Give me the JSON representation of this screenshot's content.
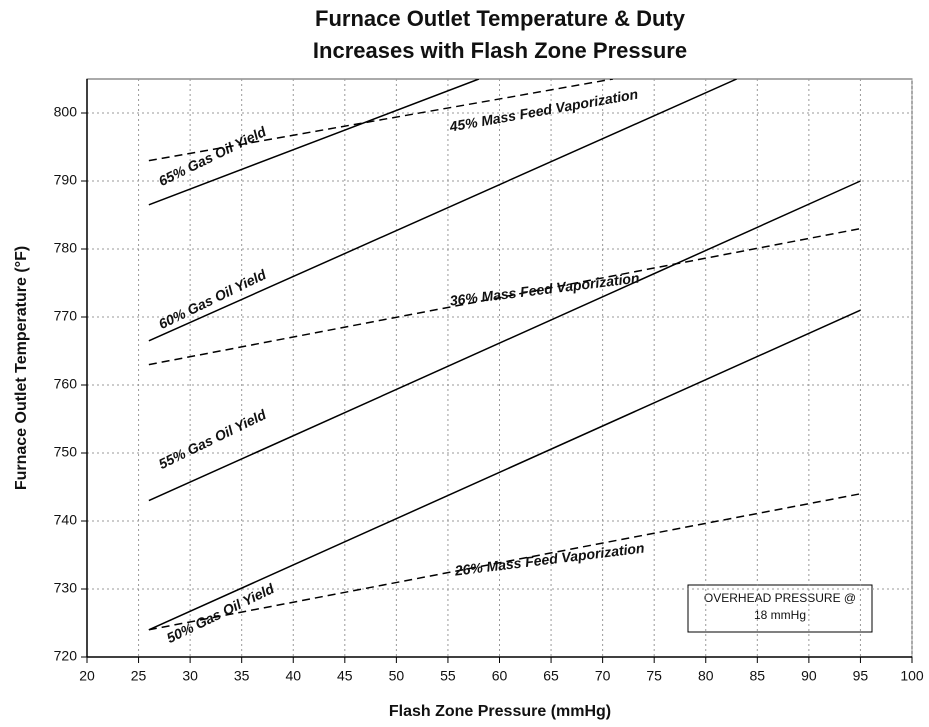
{
  "chart_data": {
    "type": "line",
    "title": [
      "Furnace Outlet Temperature & Duty",
      "Increases with Flash Zone Pressure"
    ],
    "x_label": "Flash Zone Pressure (mmHg)",
    "y_label": "Furnace Outlet Temperature (°F)",
    "xlim": [
      20,
      100
    ],
    "ylim": [
      720,
      805
    ],
    "xticks": [
      20,
      25,
      30,
      35,
      40,
      45,
      50,
      55,
      60,
      65,
      70,
      75,
      80,
      85,
      90,
      95,
      100
    ],
    "yticks": [
      720,
      730,
      740,
      750,
      760,
      770,
      780,
      790,
      800
    ],
    "grid": true,
    "series": [
      {
        "name": "65% Gas Oil Yield",
        "color": "#000000",
        "style": "solid",
        "x": [
          26,
          58
        ],
        "values": [
          786.5,
          805
        ]
      },
      {
        "name": "60% Gas Oil Yield",
        "color": "#000000",
        "style": "solid",
        "x": [
          26,
          83
        ],
        "values": [
          766.5,
          805
        ]
      },
      {
        "name": "55% Gas Oil Yield",
        "color": "#000000",
        "style": "solid",
        "x": [
          26,
          95
        ],
        "values": [
          743,
          790
        ]
      },
      {
        "name": "50% Gas Oil Yield",
        "color": "#000000",
        "style": "solid",
        "x": [
          26,
          95
        ],
        "values": [
          724,
          771
        ]
      },
      {
        "name": "45% Mass Feed Vaporization",
        "color": "#000000",
        "style": "dashed",
        "x": [
          26,
          71
        ],
        "values": [
          793,
          805
        ]
      },
      {
        "name": "36% Mass Feed Vaporization",
        "color": "#000000",
        "style": "dashed",
        "x": [
          26,
          95
        ],
        "values": [
          763,
          783
        ]
      },
      {
        "name": "26% Mass Feed Vaporization",
        "color": "#000000",
        "style": "dashed",
        "x": [
          26,
          95
        ],
        "values": [
          724,
          744
        ]
      }
    ],
    "note": [
      "OVERHEAD PRESSURE @",
      "18 mmHg"
    ]
  }
}
